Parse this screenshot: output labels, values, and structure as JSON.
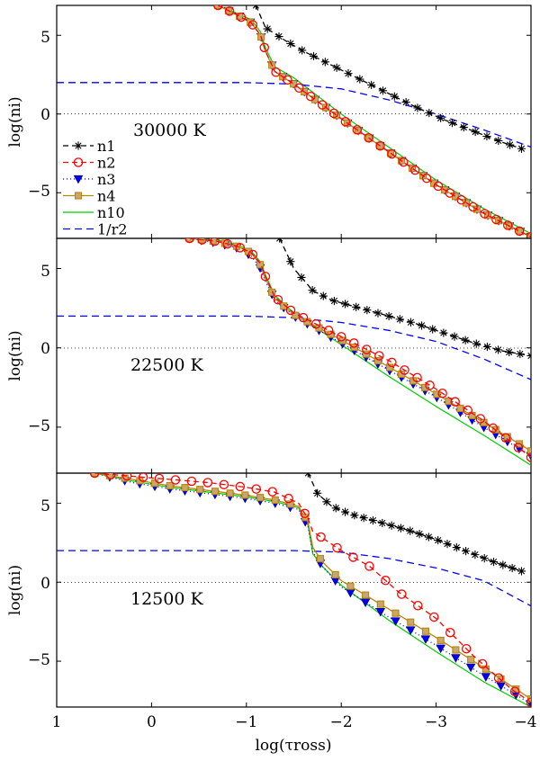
{
  "chart_data": {
    "type": "line",
    "xlabel": "log(τross)",
    "ylabel": "log(ni)",
    "xlim": [
      1,
      -4
    ],
    "ylim": [
      -7.9,
      6.9
    ],
    "xticks": [
      1,
      0,
      -1,
      -2,
      -3,
      -4
    ],
    "xtick_labels": [
      "1",
      "0",
      "−1",
      "−2",
      "−3",
      "−4"
    ],
    "yticks": [
      -5,
      0,
      5
    ],
    "ytick_labels": [
      "−5",
      "0",
      "5"
    ],
    "legend": {
      "placement": "left",
      "entries": [
        {
          "label": "n1",
          "color": "#000000",
          "marker": "star",
          "dash": "6,4"
        },
        {
          "label": "n2",
          "color": "#ff0000",
          "marker": "circle",
          "dash": "6,4"
        },
        {
          "label": "n3",
          "color": "#0000ff",
          "marker": "triangle-down",
          "dash": "1,3"
        },
        {
          "label": "n4",
          "color": "#b8860b",
          "marker": "square",
          "dash": ""
        },
        {
          "label": "n10",
          "color": "#00cc00",
          "marker": "none",
          "dash": ""
        },
        {
          "label": "1/r2",
          "color": "#0000ff",
          "marker": "none",
          "dash": "8,5"
        }
      ]
    },
    "panels": [
      {
        "title": "30000 K",
        "series": [
          {
            "name": "n1",
            "x": [
              -1.1,
              -1.2,
              -1.4,
              -1.6,
              -1.8,
              -2.0,
              -2.2,
              -2.5,
              -2.8,
              -3.1,
              -3.4,
              -3.7,
              -3.9
            ],
            "y": [
              6.9,
              5.5,
              4.7,
              4.0,
              3.4,
              2.8,
              2.2,
              1.3,
              0.4,
              -0.4,
              -1.1,
              -1.8,
              -2.2
            ]
          },
          {
            "name": "n2",
            "x": [
              -0.7,
              -0.9,
              -1.05,
              -1.15,
              -1.2,
              -1.3,
              -1.5,
              -2.0,
              -2.5,
              -3.0,
              -3.5,
              -4.0
            ],
            "y": [
              6.9,
              6.3,
              5.8,
              5.0,
              4.0,
              2.7,
              1.9,
              -0.3,
              -2.4,
              -4.5,
              -6.3,
              -7.8
            ]
          },
          {
            "name": "n3",
            "x": [
              -0.7,
              -0.9,
              -1.05,
              -1.15,
              -1.2,
              -1.3,
              -1.5,
              -2.0,
              -2.5,
              -3.0,
              -3.5,
              -4.0
            ],
            "y": [
              6.9,
              6.3,
              5.8,
              5.0,
              4.0,
              2.7,
              1.9,
              -0.3,
              -2.4,
              -4.5,
              -6.3,
              -7.8
            ]
          },
          {
            "name": "n4",
            "x": [
              -0.7,
              -0.9,
              -1.05,
              -1.15,
              -1.2,
              -1.3,
              -1.5,
              -2.0,
              -2.5,
              -3.0,
              -3.5,
              -4.0
            ],
            "y": [
              6.9,
              6.3,
              5.8,
              5.0,
              4.0,
              2.7,
              1.9,
              -0.3,
              -2.4,
              -4.5,
              -6.3,
              -7.8
            ]
          },
          {
            "name": "n10",
            "x": [
              -0.7,
              -0.9,
              -1.05,
              -1.15,
              -1.2,
              -1.3,
              -1.5,
              -2.0,
              -2.5,
              -3.0,
              -3.5,
              -4.0
            ],
            "y": [
              6.9,
              6.4,
              6.0,
              5.2,
              4.2,
              3.0,
              2.3,
              0.0,
              -2.1,
              -4.2,
              -6.0,
              -7.6
            ]
          },
          {
            "name": "1/r2",
            "x": [
              1.0,
              0.0,
              -1.0,
              -1.5,
              -2.0,
              -2.5,
              -3.0,
              -3.5,
              -4.0
            ],
            "y": [
              2.0,
              2.0,
              2.0,
              1.9,
              1.6,
              0.9,
              0.0,
              -1.0,
              -2.1
            ]
          }
        ]
      },
      {
        "title": "22500 K",
        "series": [
          {
            "name": "n1",
            "x": [
              -1.35,
              -1.5,
              -1.7,
              -1.9,
              -2.2,
              -2.5,
              -2.8,
              -3.1,
              -3.4,
              -3.7,
              -4.0
            ],
            "y": [
              6.9,
              5.0,
              3.6,
              3.0,
              2.5,
              2.0,
              1.5,
              0.9,
              0.3,
              -0.2,
              -0.5
            ]
          },
          {
            "name": "n2",
            "x": [
              -0.4,
              -0.7,
              -0.9,
              -1.05,
              -1.15,
              -1.2,
              -1.3,
              -1.5,
              -2.0,
              -2.5,
              -3.0,
              -3.5,
              -4.0
            ],
            "y": [
              6.9,
              6.7,
              6.4,
              6.0,
              5.3,
              4.5,
              3.2,
              2.2,
              0.7,
              -0.8,
              -2.6,
              -4.6,
              -6.9
            ]
          },
          {
            "name": "n3",
            "x": [
              -0.4,
              -0.7,
              -0.9,
              -1.05,
              -1.15,
              -1.2,
              -1.3,
              -1.5,
              -2.0,
              -2.5,
              -3.0,
              -3.5,
              -4.0
            ],
            "y": [
              6.9,
              6.6,
              6.3,
              5.8,
              5.0,
              4.2,
              3.0,
              2.0,
              0.3,
              -1.4,
              -3.1,
              -5.0,
              -6.8
            ]
          },
          {
            "name": "n4",
            "x": [
              -0.4,
              -0.7,
              -0.9,
              -1.05,
              -1.15,
              -1.2,
              -1.3,
              -1.5,
              -2.0,
              -2.5,
              -3.0,
              -3.5,
              -4.0
            ],
            "y": [
              6.9,
              6.7,
              6.4,
              6.0,
              5.2,
              4.4,
              3.1,
              2.1,
              0.5,
              -1.2,
              -2.9,
              -4.7,
              -6.5
            ]
          },
          {
            "name": "n10",
            "x": [
              -0.4,
              -0.7,
              -0.9,
              -1.05,
              -1.15,
              -1.2,
              -1.3,
              -1.5,
              -2.0,
              -2.5,
              -3.0,
              -3.5,
              -4.0
            ],
            "y": [
              6.9,
              6.8,
              6.5,
              6.1,
              5.4,
              4.6,
              3.3,
              2.2,
              0.2,
              -1.8,
              -3.7,
              -5.5,
              -7.4
            ]
          },
          {
            "name": "1/r2",
            "x": [
              1.0,
              0.0,
              -1.0,
              -1.5,
              -2.0,
              -2.5,
              -3.0,
              -3.5,
              -4.0
            ],
            "y": [
              2.0,
              2.0,
              2.0,
              1.9,
              1.6,
              1.1,
              0.4,
              -0.7,
              -2.0
            ]
          }
        ]
      },
      {
        "title": "12500 K",
        "series": [
          {
            "name": "n1",
            "x": [
              -1.65,
              -1.75,
              -1.9,
              -2.1,
              -2.4,
              -2.7,
              -3.0,
              -3.3,
              -3.6,
              -3.9
            ],
            "y": [
              6.9,
              5.6,
              4.8,
              4.3,
              3.8,
              3.3,
              2.7,
              2.0,
              1.3,
              0.7
            ]
          },
          {
            "name": "n2",
            "x": [
              0.6,
              0.2,
              -0.2,
              -0.6,
              -1.0,
              -1.3,
              -1.55,
              -1.65,
              -1.7,
              -1.8,
              -2.0,
              -2.3,
              -2.6,
              -3.0,
              -3.4,
              -3.8,
              -4.0
            ],
            "y": [
              6.9,
              6.7,
              6.5,
              6.3,
              6.0,
              5.7,
              5.0,
              4.0,
              3.2,
              2.8,
              2.0,
              1.0,
              -0.6,
              -2.3,
              -4.7,
              -6.8,
              -7.6
            ]
          },
          {
            "name": "n3",
            "x": [
              0.6,
              0.2,
              -0.2,
              -0.6,
              -1.0,
              -1.3,
              -1.55,
              -1.65,
              -1.7,
              -1.8,
              -2.0,
              -2.5,
              -3.0,
              -3.5,
              -4.0
            ],
            "y": [
              6.9,
              6.3,
              5.9,
              5.6,
              5.3,
              5.0,
              4.6,
              3.5,
              1.9,
              1.0,
              -0.3,
              -2.2,
              -4.0,
              -5.9,
              -7.7
            ]
          },
          {
            "name": "n4",
            "x": [
              0.6,
              0.2,
              -0.2,
              -0.6,
              -1.0,
              -1.3,
              -1.55,
              -1.65,
              -1.7,
              -1.8,
              -2.0,
              -2.5,
              -3.0,
              -3.5,
              -4.0
            ],
            "y": [
              6.9,
              6.5,
              6.1,
              5.8,
              5.5,
              5.2,
              4.8,
              3.8,
              2.2,
              1.3,
              0.1,
              -1.7,
              -3.5,
              -5.4,
              -7.4
            ]
          },
          {
            "name": "n10",
            "x": [
              0.6,
              0.2,
              -0.2,
              -0.6,
              -1.0,
              -1.3,
              -1.55,
              -1.65,
              -1.7,
              -1.8,
              -2.0,
              -2.5,
              -3.0,
              -3.5,
              -4.0
            ],
            "y": [
              6.9,
              6.4,
              6.0,
              5.7,
              5.4,
              5.1,
              4.7,
              3.6,
              1.8,
              1.0,
              -0.2,
              -2.4,
              -4.4,
              -6.3,
              -7.9
            ]
          },
          {
            "name": "1/r2",
            "x": [
              1.0,
              0.0,
              -1.0,
              -1.5,
              -2.0,
              -2.5,
              -3.0,
              -3.5,
              -4.0
            ],
            "y": [
              2.0,
              2.0,
              2.0,
              2.0,
              1.9,
              1.5,
              0.9,
              0.1,
              -1.5
            ]
          }
        ]
      }
    ]
  }
}
